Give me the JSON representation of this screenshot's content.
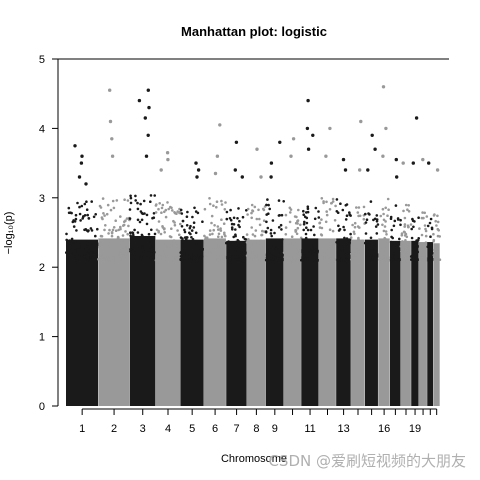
{
  "chart_data": {
    "type": "scatter",
    "title": "Manhattan plot: logistic",
    "xlabel": "Chromosome",
    "ylabel": "−log₁₀(p)",
    "ylim": [
      0,
      5
    ],
    "yticks": [
      0,
      1,
      2,
      3,
      4,
      5
    ],
    "grid": false,
    "legend": "none",
    "colors": {
      "odd": "#1a1a1a",
      "even": "#999999"
    },
    "xticks_shown": [
      "1",
      "2",
      "3",
      "4",
      "5",
      "6",
      "7",
      "8",
      "9",
      "11",
      "13",
      "16",
      "19"
    ],
    "chromosomes": [
      {
        "chr": "1",
        "color": "odd",
        "bulk_max": 2.95,
        "peaks": [
          3.75,
          3.6,
          3.5,
          3.3,
          3.2
        ]
      },
      {
        "chr": "2",
        "color": "even",
        "bulk_max": 3.0,
        "peaks": [
          4.55,
          4.1,
          3.85,
          3.6
        ]
      },
      {
        "chr": "3",
        "color": "odd",
        "bulk_max": 3.1,
        "peaks": [
          4.55,
          4.4,
          4.3,
          4.15,
          3.9,
          3.6
        ]
      },
      {
        "chr": "4",
        "color": "even",
        "bulk_max": 2.95,
        "peaks": [
          3.65,
          3.55,
          3.4
        ]
      },
      {
        "chr": "5",
        "color": "odd",
        "bulk_max": 2.95,
        "peaks": [
          3.5,
          3.4,
          3.3
        ]
      },
      {
        "chr": "6",
        "color": "even",
        "bulk_max": 3.0,
        "peaks": [
          4.05,
          3.6,
          3.35
        ]
      },
      {
        "chr": "7",
        "color": "odd",
        "bulk_max": 2.9,
        "peaks": [
          3.8,
          3.4,
          3.3
        ]
      },
      {
        "chr": "8",
        "color": "even",
        "bulk_max": 2.95,
        "peaks": [
          3.7,
          3.3
        ]
      },
      {
        "chr": "9",
        "color": "odd",
        "bulk_max": 3.0,
        "peaks": [
          3.8,
          3.5,
          3.3
        ]
      },
      {
        "chr": "10",
        "color": "even",
        "bulk_max": 3.0,
        "peaks": [
          3.85,
          3.6
        ]
      },
      {
        "chr": "11",
        "color": "odd",
        "bulk_max": 3.0,
        "peaks": [
          4.4,
          4.0,
          3.9,
          3.7
        ]
      },
      {
        "chr": "12",
        "color": "even",
        "bulk_max": 3.0,
        "peaks": [
          4.0,
          3.6
        ]
      },
      {
        "chr": "13",
        "color": "odd",
        "bulk_max": 3.0,
        "peaks": [
          3.55,
          3.4
        ]
      },
      {
        "chr": "14",
        "color": "even",
        "bulk_max": 2.95,
        "peaks": [
          4.1,
          3.4
        ]
      },
      {
        "chr": "15",
        "color": "odd",
        "bulk_max": 2.95,
        "peaks": [
          3.9,
          3.7,
          3.4
        ]
      },
      {
        "chr": "16",
        "color": "even",
        "bulk_max": 3.0,
        "peaks": [
          4.6,
          4.0,
          3.6
        ]
      },
      {
        "chr": "17",
        "color": "odd",
        "bulk_max": 2.9,
        "peaks": [
          3.55,
          3.3
        ]
      },
      {
        "chr": "18",
        "color": "even",
        "bulk_max": 2.9,
        "peaks": [
          3.5
        ]
      },
      {
        "chr": "19",
        "color": "odd",
        "bulk_max": 2.9,
        "peaks": [
          4.15,
          3.5
        ]
      },
      {
        "chr": "20",
        "color": "even",
        "bulk_max": 2.85,
        "peaks": [
          3.55
        ]
      },
      {
        "chr": "21",
        "color": "odd",
        "bulk_max": 2.85,
        "peaks": [
          3.5
        ]
      },
      {
        "chr": "22",
        "color": "even",
        "bulk_max": 2.8,
        "peaks": [
          3.4
        ]
      }
    ]
  },
  "watermark": "CSDN @爱刷短视频的大朋友"
}
